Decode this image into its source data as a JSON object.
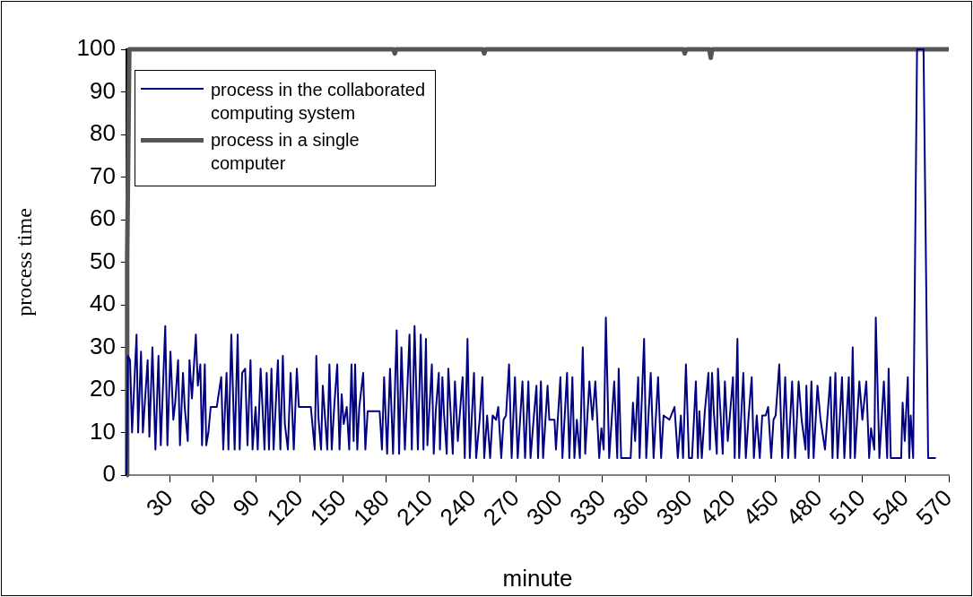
{
  "chart_data": {
    "type": "line",
    "xlabel": "minute",
    "ylabel": "process time",
    "xlim": [
      0,
      570
    ],
    "xticks": [
      30,
      60,
      90,
      120,
      150,
      180,
      210,
      240,
      270,
      300,
      330,
      360,
      390,
      420,
      450,
      480,
      510,
      540,
      570
    ],
    "ylim": [
      0,
      100
    ],
    "yticks": [
      0,
      10,
      20,
      30,
      40,
      50,
      60,
      70,
      80,
      90,
      100
    ],
    "grid": false,
    "legend": "top left",
    "marker": "none",
    "line_style": "solid",
    "series": [
      {
        "name": "process in the collaborated computing system",
        "color": "#000080",
        "x": [
          0,
          1,
          2.5,
          3.9,
          7,
          8.1,
          10.1,
          11.4,
          14.7,
          15.9,
          18,
          20.1,
          22.2,
          23.8,
          26.9,
          28.4,
          30.5,
          32.5,
          33.8,
          35.8,
          37.1,
          39.2,
          40.4,
          42.5,
          43.7,
          45.4,
          48.1,
          49.5,
          51.2,
          52.4,
          54.3,
          55.3,
          56.8,
          58.4,
          62.6,
          65.7,
          67.1,
          69.4,
          70.7,
          72.7,
          75,
          77.1,
          78.5,
          80.2,
          82.3,
          83.9,
          86,
          87.4,
          89.5,
          91,
          93,
          94.3,
          95.7,
          97.2,
          98.8,
          100.5,
          102,
          105,
          106.7,
          108.4,
          109.8,
          111.9,
          113.8,
          116,
          118.1,
          119.5,
          127.8,
          130.5,
          131.6,
          133.2,
          134.9,
          136.1,
          139.2,
          140.7,
          142.3,
          144,
          146.1,
          147.7,
          149.2,
          150.6,
          152.7,
          154.4,
          156,
          157.5,
          158.5,
          160,
          161.4,
          164.1,
          165.6,
          167.2,
          175.5,
          177.1,
          178.6,
          180.7,
          182.7,
          184.8,
          187.3,
          189,
          190.6,
          193,
          196.2,
          197.8,
          199.7,
          202,
          204,
          205.9,
          207.6,
          208.6,
          211.7,
          213,
          214.4,
          216.5,
          217.3,
          219,
          220,
          222,
          223.1,
          226.2,
          227.7,
          229.7,
          233,
          234.5,
          236.4,
          238,
          240.9,
          242.4,
          244.8,
          246.7,
          248,
          250,
          252.1,
          253.8,
          256.2,
          257.7,
          259.8,
          261.4,
          263.1,
          265.2,
          267,
          269.3,
          271.2,
          274.5,
          276.3,
          278.6,
          280.1,
          282.2,
          284.2,
          285.3,
          287.3,
          288.8,
          291.9,
          293.1,
          296.7,
          297.7,
          300.8,
          302.2,
          305.4,
          307,
          309.1,
          310.5,
          312.2,
          314.3,
          316.3,
          318,
          320.9,
          323,
          325,
          327.7,
          329.2,
          330.8,
          332.3,
          334.6,
          338.1,
          340.2,
          341.2,
          342.9,
          349.5,
          351.1,
          352.6,
          354.7,
          355.7,
          358.8,
          360.3,
          363.4,
          365.4,
          368.5,
          370.6,
          372.3,
          376.4,
          379.9,
          382.2,
          384.3,
          385.8,
          387.8,
          389.9,
          392,
          394.7,
          396.1,
          397.1,
          398.8,
          400.9,
          403.4,
          404.4,
          405.9,
          407.1,
          409.2,
          410,
          411.7,
          413.3,
          414.8,
          416.8,
          418.3,
          420.4,
          421.6,
          423.5,
          424.7,
          427.6,
          429.3,
          431.3,
          433.4,
          434.9,
          436.9,
          439,
          440.7,
          443.1,
          444.8,
          446.9,
          448.5,
          450,
          452.5,
          454.5,
          456.6,
          458.7,
          461.4,
          463.5,
          465.9,
          468,
          470.7,
          471.3,
          472.8,
          474.8,
          476.3,
          479,
          481.1,
          484.2,
          487.9,
          489.4,
          491.4,
          492.9,
          496,
          497.6,
          500.7,
          501.8,
          503.4,
          504.9,
          508,
          510.1,
          512.8,
          514.8,
          516.1,
          518.4,
          519.4,
          521.9,
          525,
          527.3,
          528.3,
          529.8,
          537,
          538,
          539.5,
          541.6,
          542.6,
          543.6,
          545.3,
          548,
          552.5,
          555.7,
          561
        ],
        "values": [
          0,
          28,
          27,
          10,
          33,
          10,
          29,
          10,
          27,
          9,
          30,
          6,
          28,
          7,
          35,
          7,
          29,
          13,
          17,
          27,
          7,
          24,
          16,
          8,
          27,
          18,
          33,
          21,
          26,
          7,
          26,
          7,
          10,
          16,
          16,
          23,
          6,
          24,
          6,
          33,
          6,
          33,
          6,
          24,
          25,
          7,
          27,
          6,
          16,
          6,
          25,
          16,
          6,
          24,
          6,
          25,
          6,
          27,
          6,
          28,
          12,
          6,
          24,
          6,
          25,
          16,
          16,
          6,
          28,
          13,
          6,
          21,
          6,
          26,
          6,
          16,
          26,
          6,
          19,
          12,
          16,
          6,
          26,
          8,
          26,
          6,
          16,
          24,
          6,
          15,
          15,
          6,
          23,
          5,
          25,
          5,
          34,
          5,
          30,
          6,
          33,
          6,
          35,
          6,
          33,
          6,
          32,
          7,
          26,
          5,
          15,
          24,
          6,
          23,
          15,
          5,
          25,
          5,
          22,
          8,
          23,
          4,
          32,
          4,
          24,
          4,
          13,
          23,
          4,
          14,
          4,
          14,
          13,
          16,
          4,
          13,
          14,
          26,
          4,
          23,
          4,
          22,
          4,
          22,
          4,
          13,
          21,
          4,
          22,
          4,
          21,
          13,
          13,
          6,
          23,
          4,
          24,
          4,
          23,
          4,
          13,
          4,
          30,
          5,
          22,
          13,
          22,
          4,
          11,
          6,
          37,
          4,
          22,
          4,
          25,
          4,
          4,
          17,
          8,
          23,
          4,
          32,
          4,
          24,
          4,
          23,
          4,
          14,
          13,
          16,
          4,
          14,
          4,
          26,
          4,
          4,
          22,
          4,
          15,
          4,
          15,
          24,
          6,
          24,
          15,
          5,
          25,
          15,
          5,
          22,
          8,
          14,
          23,
          4,
          32,
          4,
          24,
          4,
          14,
          23,
          4,
          14,
          4,
          14,
          14,
          16,
          4,
          13,
          14,
          26,
          4,
          23,
          4,
          22,
          4,
          22,
          13,
          6,
          21,
          4,
          22,
          4,
          21,
          13,
          6,
          23,
          4,
          24,
          4,
          23,
          4,
          23,
          4,
          30,
          4,
          22,
          13,
          22,
          4,
          11,
          6,
          37,
          4,
          22,
          4,
          25,
          4,
          4,
          17,
          8,
          23,
          4,
          14,
          4,
          100,
          100,
          4,
          4
        ]
      },
      {
        "name": "process in a single computer",
        "color": "#555555",
        "x": [
          0,
          0.5,
          2,
          185,
          186,
          187,
          247,
          248,
          249,
          386,
          387,
          388,
          404,
          405,
          406,
          570
        ],
        "values": [
          0,
          51,
          100,
          100,
          99,
          100,
          100,
          99,
          100,
          100,
          99,
          100,
          100,
          98,
          100,
          100
        ]
      }
    ]
  }
}
